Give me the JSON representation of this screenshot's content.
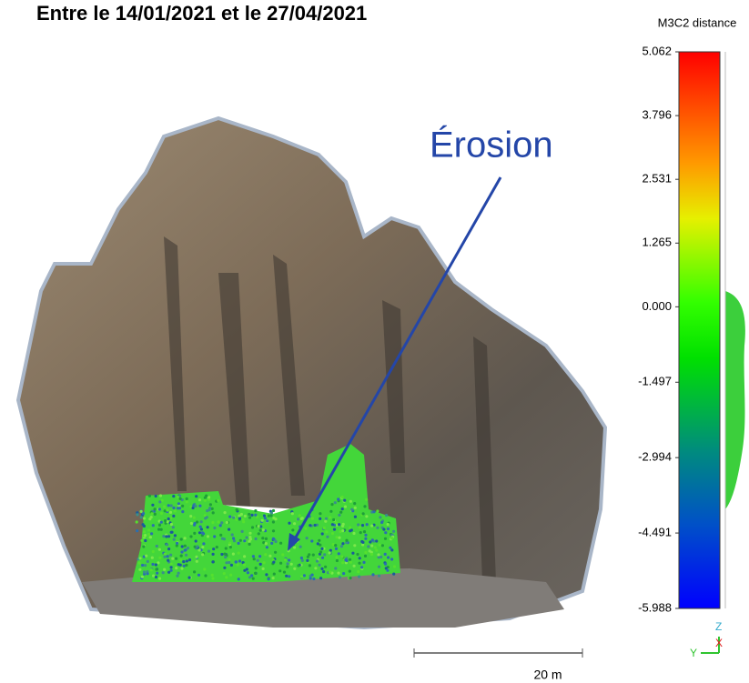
{
  "title": "Entre le 14/01/2021 et le 27/04/2021",
  "annotation": "Érosion",
  "colorbar": {
    "title": "M3C2 distance",
    "lim": [
      -5.988,
      5.062
    ],
    "ticks": [
      5.062,
      3.796,
      2.531,
      1.265,
      {
        "value": 0,
        "label": "0.000"
      },
      -1.497,
      -2.994,
      -4.491,
      -5.988
    ]
  },
  "scale_bar": {
    "label": "20 m"
  },
  "axes_gizmo": {
    "labels": [
      "Z",
      "Y",
      "X"
    ]
  }
}
